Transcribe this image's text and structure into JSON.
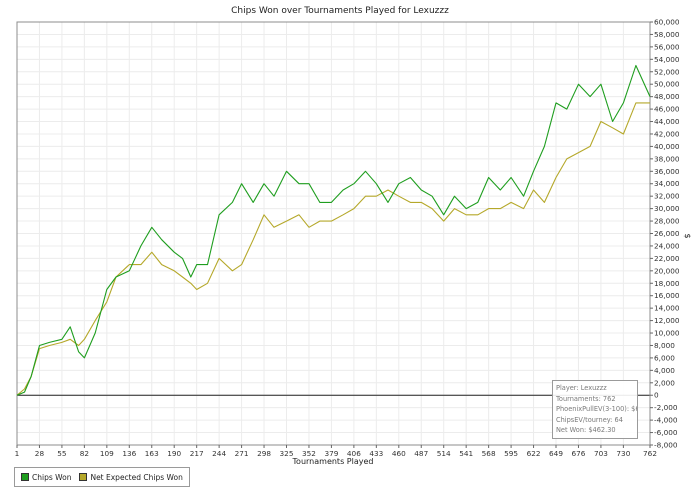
{
  "chart_data": {
    "type": "line",
    "title": "Chips Won over Tournaments Played for  Lexuzzz",
    "xlabel": "Tournaments Played",
    "ylabel": "$",
    "xlim": [
      1,
      762
    ],
    "ylim": [
      -8000,
      60000
    ],
    "x_ticks": [
      1,
      28,
      55,
      82,
      109,
      136,
      163,
      190,
      217,
      244,
      271,
      298,
      325,
      352,
      379,
      406,
      433,
      460,
      487,
      514,
      541,
      568,
      595,
      622,
      649,
      676,
      703,
      730,
      762
    ],
    "y_tick_step": 2000,
    "y_tick_labels": [
      "-8,000",
      "-6,000",
      "-4,000",
      "-2,000",
      "0",
      "2,000",
      "4,000",
      "6,000",
      "8,000",
      "10,000",
      "12,000",
      "14,000",
      "16,000",
      "18,000",
      "20,000",
      "22,000",
      "24,000",
      "26,000",
      "28,000",
      "30,000",
      "32,000",
      "34,000",
      "36,000",
      "38,000",
      "40,000",
      "42,000",
      "44,000",
      "46,000",
      "48,000",
      "50,000",
      "52,000",
      "54,000",
      "56,000",
      "58,000",
      "60,000"
    ],
    "grid": true,
    "legend_position": "bottom-left",
    "series": [
      {
        "name": "Chips Won",
        "color": "#1f9e1f",
        "x": [
          1,
          10,
          18,
          28,
          40,
          55,
          65,
          75,
          82,
          95,
          109,
          120,
          136,
          150,
          163,
          175,
          190,
          200,
          210,
          217,
          230,
          244,
          260,
          271,
          285,
          298,
          310,
          325,
          340,
          352,
          365,
          379,
          393,
          406,
          420,
          433,
          447,
          460,
          474,
          487,
          500,
          514,
          527,
          541,
          555,
          568,
          582,
          595,
          610,
          622,
          635,
          649,
          662,
          676,
          690,
          703,
          717,
          730,
          745,
          762
        ],
        "y": [
          0,
          500,
          3000,
          8000,
          8500,
          9000,
          11000,
          7000,
          6000,
          10000,
          17000,
          19000,
          20000,
          24000,
          27000,
          25000,
          23000,
          22000,
          19000,
          21000,
          21000,
          29000,
          31000,
          34000,
          31000,
          34000,
          32000,
          36000,
          34000,
          34000,
          31000,
          31000,
          33000,
          34000,
          36000,
          34000,
          31000,
          34000,
          35000,
          33000,
          32000,
          29000,
          32000,
          30000,
          31000,
          35000,
          33000,
          35000,
          32000,
          36000,
          40000,
          47000,
          46000,
          50000,
          48000,
          50000,
          44000,
          47000,
          53000,
          48000
        ]
      },
      {
        "name": "Net Expected Chips Won",
        "color": "#b5a82a",
        "x": [
          1,
          10,
          18,
          28,
          40,
          55,
          65,
          75,
          82,
          95,
          109,
          120,
          136,
          150,
          163,
          175,
          190,
          200,
          210,
          217,
          230,
          244,
          260,
          271,
          285,
          298,
          310,
          325,
          340,
          352,
          365,
          379,
          393,
          406,
          420,
          433,
          447,
          460,
          474,
          487,
          500,
          514,
          527,
          541,
          555,
          568,
          582,
          595,
          610,
          622,
          635,
          649,
          662,
          676,
          690,
          703,
          717,
          730,
          745,
          762
        ],
        "y": [
          0,
          1000,
          3000,
          7500,
          8000,
          8500,
          9000,
          8000,
          9000,
          12000,
          15000,
          19000,
          21000,
          21000,
          23000,
          21000,
          20000,
          19000,
          18000,
          17000,
          18000,
          22000,
          20000,
          21000,
          25000,
          29000,
          27000,
          28000,
          29000,
          27000,
          28000,
          28000,
          29000,
          30000,
          32000,
          32000,
          33000,
          32000,
          31000,
          31000,
          30000,
          28000,
          30000,
          29000,
          29000,
          30000,
          30000,
          31000,
          30000,
          33000,
          31000,
          35000,
          38000,
          39000,
          40000,
          44000,
          43000,
          42000,
          47000,
          47000
        ]
      }
    ]
  },
  "legend": {
    "items": [
      "Chips Won",
      "Net Expected Chips Won"
    ]
  },
  "infobox": {
    "player": "Player: Lexuzzz",
    "tournaments": "Tournaments: 762",
    "phoenix": "PhoenixPullEV(3-100): $620.81",
    "chipsev": "ChipsEV/tourney: 64",
    "netwon": "Net Won: $462.30"
  }
}
